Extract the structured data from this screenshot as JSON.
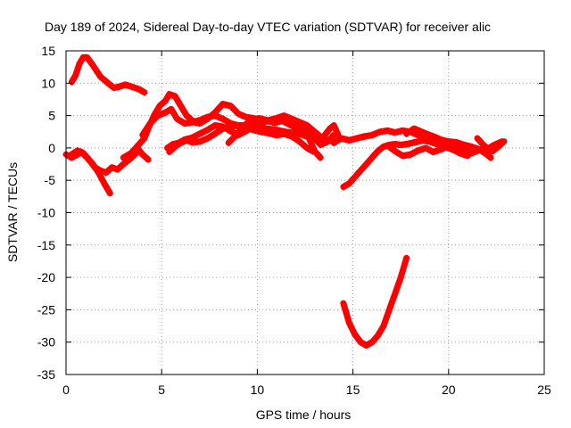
{
  "chart_data": {
    "type": "line",
    "title": "Day 189 of 2024, Sidereal Day-to-day VTEC variation (SDTVAR) for receiver alic",
    "xlabel": "GPS time / hours",
    "ylabel": "SDTVAR / TECUs",
    "xlim": [
      0,
      25
    ],
    "ylim": [
      -35,
      15
    ],
    "xticks": [
      0,
      5,
      10,
      15,
      20,
      25
    ],
    "yticks": [
      -35,
      -30,
      -25,
      -20,
      -15,
      -10,
      -5,
      0,
      5,
      10,
      15
    ],
    "grid": true,
    "color": "#ff0000",
    "series": [
      {
        "name": "track-1",
        "points": [
          [
            0.3,
            10.2
          ],
          [
            0.5,
            11.2
          ],
          [
            0.7,
            13.0
          ],
          [
            0.9,
            14.0
          ],
          [
            1.1,
            14.0
          ],
          [
            1.4,
            12.8
          ],
          [
            1.8,
            11.0
          ],
          [
            2.2,
            10.0
          ],
          [
            2.5,
            9.3
          ],
          [
            2.8,
            9.5
          ],
          [
            3.1,
            9.8
          ],
          [
            3.4,
            9.5
          ],
          [
            3.8,
            9.1
          ],
          [
            4.1,
            8.6
          ]
        ]
      },
      {
        "name": "track-2",
        "points": [
          [
            0.0,
            -1.0
          ],
          [
            0.3,
            -1.5
          ],
          [
            0.6,
            -1.0
          ],
          [
            0.8,
            -0.6
          ],
          [
            1.1,
            -1.5
          ],
          [
            1.4,
            -2.5
          ],
          [
            1.7,
            -3.8
          ],
          [
            2.0,
            -5.5
          ],
          [
            2.3,
            -7.0
          ]
        ]
      },
      {
        "name": "track-3",
        "points": [
          [
            0.3,
            -1.0
          ],
          [
            0.6,
            -0.4
          ],
          [
            0.9,
            -0.8
          ],
          [
            1.2,
            -1.8
          ],
          [
            1.5,
            -3.0
          ],
          [
            1.8,
            -3.5
          ],
          [
            2.1,
            -3.8
          ],
          [
            2.4,
            -3.0
          ],
          [
            2.7,
            -3.3
          ],
          [
            3.0,
            -2.5
          ],
          [
            3.3,
            -1.8
          ],
          [
            3.6,
            -1.0
          ],
          [
            3.8,
            -0.3
          ],
          [
            4.0,
            -1.0
          ],
          [
            4.3,
            -1.8
          ]
        ]
      },
      {
        "name": "track-4",
        "points": [
          [
            3.0,
            -1.5
          ],
          [
            3.4,
            -0.8
          ],
          [
            3.8,
            0.5
          ],
          [
            4.1,
            1.5
          ],
          [
            4.3,
            3.0
          ],
          [
            4.6,
            5.0
          ],
          [
            4.9,
            6.5
          ],
          [
            5.2,
            7.3
          ],
          [
            5.4,
            8.3
          ],
          [
            5.7,
            8.0
          ],
          [
            6.0,
            6.5
          ],
          [
            6.3,
            5.0
          ],
          [
            6.7,
            4.0
          ],
          [
            7.0,
            3.8
          ],
          [
            7.4,
            4.5
          ],
          [
            7.8,
            5.5
          ],
          [
            8.2,
            6.8
          ],
          [
            8.6,
            6.5
          ],
          [
            9.0,
            5.3
          ],
          [
            9.4,
            4.8
          ],
          [
            9.8,
            4.6
          ],
          [
            10.3,
            4.3
          ],
          [
            10.8,
            4.0
          ],
          [
            11.3,
            4.8
          ],
          [
            11.8,
            4.5
          ],
          [
            12.3,
            3.5
          ],
          [
            12.7,
            1.5
          ],
          [
            13.0,
            -0.5
          ],
          [
            13.3,
            -1.5
          ]
        ]
      },
      {
        "name": "track-5",
        "points": [
          [
            4.0,
            2.0
          ],
          [
            4.4,
            3.8
          ],
          [
            4.8,
            5.0
          ],
          [
            5.2,
            5.5
          ],
          [
            5.5,
            6.0
          ],
          [
            5.8,
            4.5
          ],
          [
            6.2,
            3.8
          ],
          [
            6.6,
            4.0
          ],
          [
            7.0,
            4.3
          ],
          [
            7.4,
            4.8
          ],
          [
            7.8,
            5.0
          ],
          [
            8.2,
            4.5
          ],
          [
            8.6,
            3.8
          ],
          [
            9.0,
            3.5
          ],
          [
            9.5,
            3.5
          ],
          [
            10.0,
            3.2
          ],
          [
            10.5,
            3.0
          ],
          [
            11.0,
            2.8
          ],
          [
            11.5,
            2.5
          ],
          [
            12.0,
            2.3
          ],
          [
            12.4,
            2.0
          ],
          [
            12.8,
            1.5
          ],
          [
            13.2,
            1.8
          ],
          [
            13.6,
            1.3
          ],
          [
            14.0,
            1.0
          ]
        ]
      },
      {
        "name": "track-6",
        "points": [
          [
            5.3,
            0.0
          ],
          [
            5.6,
            0.6
          ],
          [
            5.9,
            0.8
          ],
          [
            6.2,
            1.3
          ],
          [
            6.6,
            1.6
          ],
          [
            7.0,
            2.2
          ],
          [
            7.4,
            2.8
          ],
          [
            7.8,
            3.5
          ],
          [
            8.2,
            3.3
          ],
          [
            8.6,
            2.6
          ],
          [
            9.0,
            2.0
          ],
          [
            9.4,
            2.6
          ],
          [
            9.8,
            3.3
          ],
          [
            10.2,
            3.8
          ],
          [
            10.6,
            4.3
          ],
          [
            11.0,
            4.6
          ],
          [
            11.4,
            5.0
          ],
          [
            11.8,
            4.5
          ],
          [
            12.2,
            4.0
          ],
          [
            12.6,
            3.5
          ],
          [
            13.0,
            2.5
          ],
          [
            13.4,
            1.5
          ],
          [
            13.8,
            3.0
          ],
          [
            14.0,
            3.5
          ],
          [
            14.3,
            1.5
          ]
        ]
      },
      {
        "name": "track-7",
        "points": [
          [
            5.4,
            -0.6
          ],
          [
            5.7,
            0.2
          ],
          [
            6.0,
            0.8
          ],
          [
            6.3,
            1.2
          ],
          [
            6.6,
            0.9
          ],
          [
            7.0,
            1.0
          ],
          [
            7.4,
            1.5
          ],
          [
            7.8,
            2.2
          ],
          [
            8.2,
            3.0
          ],
          [
            8.6,
            3.3
          ],
          [
            9.0,
            3.5
          ],
          [
            9.4,
            3.2
          ],
          [
            9.8,
            2.8
          ],
          [
            10.2,
            2.5
          ],
          [
            10.6,
            2.3
          ],
          [
            11.0,
            2.0
          ],
          [
            11.4,
            2.2
          ],
          [
            11.8,
            1.8
          ],
          [
            12.2,
            1.0
          ],
          [
            12.6,
            0.0
          ],
          [
            12.9,
            -0.5
          ]
        ]
      },
      {
        "name": "track-8",
        "points": [
          [
            8.5,
            0.8
          ],
          [
            8.9,
            2.0
          ],
          [
            9.3,
            3.5
          ],
          [
            9.7,
            4.2
          ],
          [
            10.1,
            4.6
          ],
          [
            10.5,
            4.3
          ],
          [
            10.9,
            3.9
          ],
          [
            11.3,
            4.2
          ],
          [
            11.7,
            3.6
          ],
          [
            12.1,
            3.0
          ],
          [
            12.5,
            2.5
          ],
          [
            12.9,
            1.8
          ],
          [
            13.3,
            0.5
          ],
          [
            13.7,
            1.0
          ],
          [
            14.0,
            2.0
          ]
        ]
      },
      {
        "name": "track-9",
        "points": [
          [
            14.5,
            -6.0
          ],
          [
            14.8,
            -5.5
          ],
          [
            15.1,
            -4.5
          ],
          [
            15.4,
            -3.5
          ],
          [
            15.7,
            -2.5
          ],
          [
            16.0,
            -1.5
          ],
          [
            16.3,
            -0.5
          ],
          [
            16.6,
            0.2
          ],
          [
            16.9,
            0.5
          ],
          [
            17.2,
            0.6
          ],
          [
            17.5,
            0.5
          ],
          [
            17.8,
            0.6
          ],
          [
            18.1,
            0.8
          ],
          [
            18.4,
            1.0
          ],
          [
            18.7,
            1.2
          ],
          [
            19.0,
            1.0
          ],
          [
            19.4,
            0.6
          ],
          [
            19.8,
            0.4
          ],
          [
            20.2,
            0.2
          ],
          [
            20.6,
            0.0
          ],
          [
            21.0,
            -0.3
          ],
          [
            21.4,
            -0.5
          ]
        ]
      },
      {
        "name": "track-10",
        "points": [
          [
            14.0,
            0.8
          ],
          [
            14.4,
            1.5
          ],
          [
            14.8,
            1.2
          ],
          [
            15.2,
            1.5
          ],
          [
            15.6,
            1.8
          ],
          [
            16.0,
            2.0
          ],
          [
            16.4,
            2.5
          ],
          [
            16.8,
            2.7
          ],
          [
            17.2,
            2.4
          ],
          [
            17.6,
            2.7
          ],
          [
            18.0,
            2.5
          ],
          [
            18.4,
            2.0
          ],
          [
            18.8,
            2.2
          ],
          [
            19.2,
            1.8
          ],
          [
            19.6,
            1.3
          ],
          [
            20.0,
            1.0
          ],
          [
            20.4,
            0.9
          ],
          [
            20.8,
            0.5
          ],
          [
            21.2,
            0.2
          ],
          [
            21.6,
            -0.2
          ],
          [
            22.0,
            -1.0
          ],
          [
            22.2,
            -1.5
          ]
        ]
      },
      {
        "name": "track-11",
        "points": [
          [
            16.8,
            0.4
          ],
          [
            17.2,
            -0.5
          ],
          [
            17.6,
            -1.2
          ],
          [
            18.0,
            -1.0
          ],
          [
            18.4,
            -0.4
          ],
          [
            18.8,
            0.0
          ],
          [
            19.2,
            -0.6
          ],
          [
            19.6,
            -0.2
          ],
          [
            20.0,
            0.3
          ],
          [
            20.4,
            0.0
          ],
          [
            20.8,
            -0.4
          ],
          [
            21.2,
            -0.8
          ],
          [
            21.6,
            -0.3
          ],
          [
            22.0,
            -0.2
          ],
          [
            22.4,
            0.5
          ],
          [
            22.8,
            1.0
          ]
        ]
      },
      {
        "name": "track-12",
        "points": [
          [
            17.8,
            2.2
          ],
          [
            18.2,
            3.0
          ],
          [
            18.6,
            2.5
          ],
          [
            19.0,
            2.0
          ],
          [
            19.4,
            1.0
          ],
          [
            19.8,
            0.2
          ],
          [
            20.2,
            -0.2
          ],
          [
            20.6,
            -0.8
          ],
          [
            21.0,
            -1.2
          ]
        ]
      },
      {
        "name": "track-13",
        "points": [
          [
            21.5,
            1.5
          ],
          [
            21.8,
            0.5
          ],
          [
            22.0,
            0.0
          ],
          [
            22.3,
            -0.5
          ],
          [
            22.6,
            0.2
          ],
          [
            22.9,
            1.0
          ]
        ]
      },
      {
        "name": "track-14",
        "points": [
          [
            14.5,
            -24.0
          ],
          [
            14.8,
            -27.0
          ],
          [
            15.1,
            -28.8
          ],
          [
            15.4,
            -30.0
          ],
          [
            15.7,
            -30.5
          ],
          [
            16.0,
            -30.0
          ],
          [
            16.3,
            -29.0
          ],
          [
            16.6,
            -27.5
          ],
          [
            16.9,
            -25.0
          ],
          [
            17.2,
            -22.5
          ],
          [
            17.5,
            -20.0
          ],
          [
            17.8,
            -17.0
          ]
        ]
      }
    ]
  }
}
